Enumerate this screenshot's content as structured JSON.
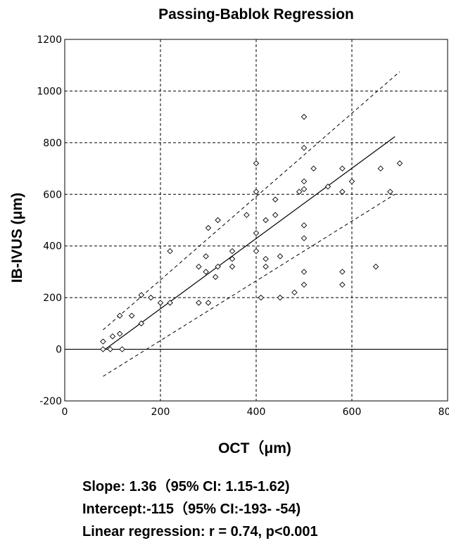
{
  "chart_data": {
    "type": "scatter",
    "title": "Passing-Bablok Regression",
    "xlabel": "OCT（μm)",
    "ylabel": "IB-IVUS (μm)",
    "xlim": [
      0,
      800
    ],
    "ylim": [
      -200,
      1200
    ],
    "x_ticks": [
      "0",
      "200",
      "400",
      "600",
      "800"
    ],
    "y_ticks": [
      "-200",
      "0",
      "200",
      "400",
      "600",
      "800",
      "1000",
      "1200"
    ],
    "grid": true,
    "points": [
      [
        80,
        30
      ],
      [
        80,
        0
      ],
      [
        95,
        0
      ],
      [
        100,
        50
      ],
      [
        115,
        130
      ],
      [
        115,
        60
      ],
      [
        120,
        0
      ],
      [
        140,
        130
      ],
      [
        160,
        100
      ],
      [
        160,
        210
      ],
      [
        180,
        200
      ],
      [
        200,
        180
      ],
      [
        220,
        380
      ],
      [
        220,
        180
      ],
      [
        280,
        320
      ],
      [
        280,
        180
      ],
      [
        295,
        300
      ],
      [
        295,
        360
      ],
      [
        300,
        470
      ],
      [
        300,
        180
      ],
      [
        315,
        280
      ],
      [
        320,
        500
      ],
      [
        320,
        320
      ],
      [
        350,
        380
      ],
      [
        350,
        350
      ],
      [
        350,
        320
      ],
      [
        380,
        520
      ],
      [
        400,
        720
      ],
      [
        400,
        610
      ],
      [
        400,
        450
      ],
      [
        400,
        380
      ],
      [
        410,
        200
      ],
      [
        420,
        500
      ],
      [
        420,
        350
      ],
      [
        420,
        320
      ],
      [
        440,
        580
      ],
      [
        440,
        520
      ],
      [
        450,
        360
      ],
      [
        450,
        200
      ],
      [
        480,
        220
      ],
      [
        490,
        610
      ],
      [
        500,
        900
      ],
      [
        500,
        780
      ],
      [
        500,
        650
      ],
      [
        500,
        620
      ],
      [
        500,
        480
      ],
      [
        500,
        430
      ],
      [
        500,
        300
      ],
      [
        500,
        250
      ],
      [
        520,
        700
      ],
      [
        550,
        630
      ],
      [
        580,
        700
      ],
      [
        580,
        610
      ],
      [
        580,
        300
      ],
      [
        580,
        250
      ],
      [
        600,
        650
      ],
      [
        650,
        320
      ],
      [
        660,
        700
      ],
      [
        680,
        610
      ],
      [
        700,
        720
      ]
    ],
    "regression_line": {
      "slope": 1.36,
      "intercept": -115,
      "x_range": [
        80,
        690
      ]
    },
    "ci_upper": [
      [
        80,
        75
      ],
      [
        700,
        1075
      ]
    ],
    "ci_lower": [
      [
        80,
        -105
      ],
      [
        690,
        600
      ]
    ]
  },
  "stats": {
    "slope": "Slope: 1.36（95% CI: 1.15-1.62)",
    "intercept": "Intercept:-115（95% CI:-193- -54)",
    "linear": "Linear regression: r = 0.74, p<0.001"
  }
}
